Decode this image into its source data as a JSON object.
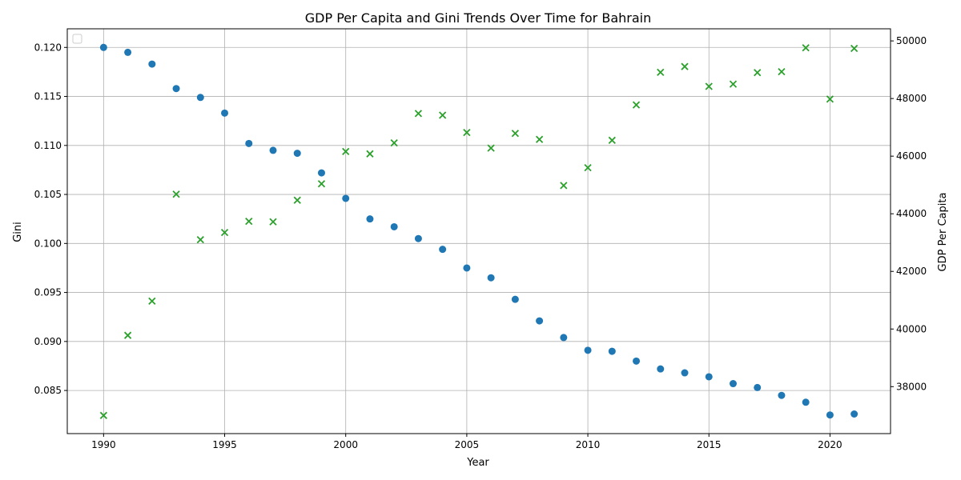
{
  "chart_data": {
    "type": "scatter",
    "title": "GDP Per Capita and Gini Trends Over Time for Bahrain",
    "xlabel": "Year",
    "ylabel_left": "Gini",
    "ylabel_right": "GDP Per Capita",
    "grid": true,
    "legend": "top-left (empty)",
    "xlim": [
      1988.5,
      2022.5
    ],
    "ylim_left": [
      0.0806,
      0.1219
    ],
    "ylim_right": [
      36370,
      50420
    ],
    "x_ticks": [
      1990,
      1995,
      2000,
      2005,
      2010,
      2015,
      2020
    ],
    "y_ticks_left": [
      0.085,
      0.09,
      0.095,
      0.1,
      0.105,
      0.11,
      0.115,
      0.12
    ],
    "y_ticks_right": [
      38000,
      40000,
      42000,
      44000,
      46000,
      48000,
      50000
    ],
    "colors": {
      "gini": "#1f77b4",
      "gdp": "#2ca02c"
    },
    "x": [
      1990,
      1991,
      1992,
      1993,
      1994,
      1995,
      1996,
      1997,
      1998,
      1999,
      2000,
      2001,
      2002,
      2003,
      2004,
      2005,
      2006,
      2007,
      2008,
      2009,
      2010,
      2011,
      2012,
      2013,
      2014,
      2015,
      2016,
      2017,
      2018,
      2019,
      2020,
      2021
    ],
    "series": [
      {
        "axis": "left",
        "marker": "circle",
        "values": [
          0.12,
          0.1195,
          0.1183,
          0.1158,
          0.1149,
          0.1133,
          0.1102,
          0.1095,
          0.1092,
          0.1072,
          0.1046,
          0.1025,
          0.1017,
          0.1005,
          0.0994,
          0.0975,
          0.0965,
          0.0943,
          0.0921,
          0.0904,
          0.0891,
          0.089,
          0.088,
          0.0872,
          0.0868,
          0.0864,
          0.0857,
          0.0853,
          0.0845,
          0.0838,
          0.0825,
          0.0826
        ]
      },
      {
        "axis": "right",
        "marker": "x",
        "values": [
          37000,
          39780,
          40970,
          44680,
          43100,
          43350,
          43740,
          43720,
          44470,
          45040,
          46160,
          46080,
          46460,
          47480,
          47420,
          46820,
          46280,
          46790,
          46580,
          44980,
          45600,
          46550,
          47780,
          48910,
          49110,
          48420,
          48500,
          48900,
          48930,
          49760,
          47980,
          49740
        ]
      }
    ]
  }
}
